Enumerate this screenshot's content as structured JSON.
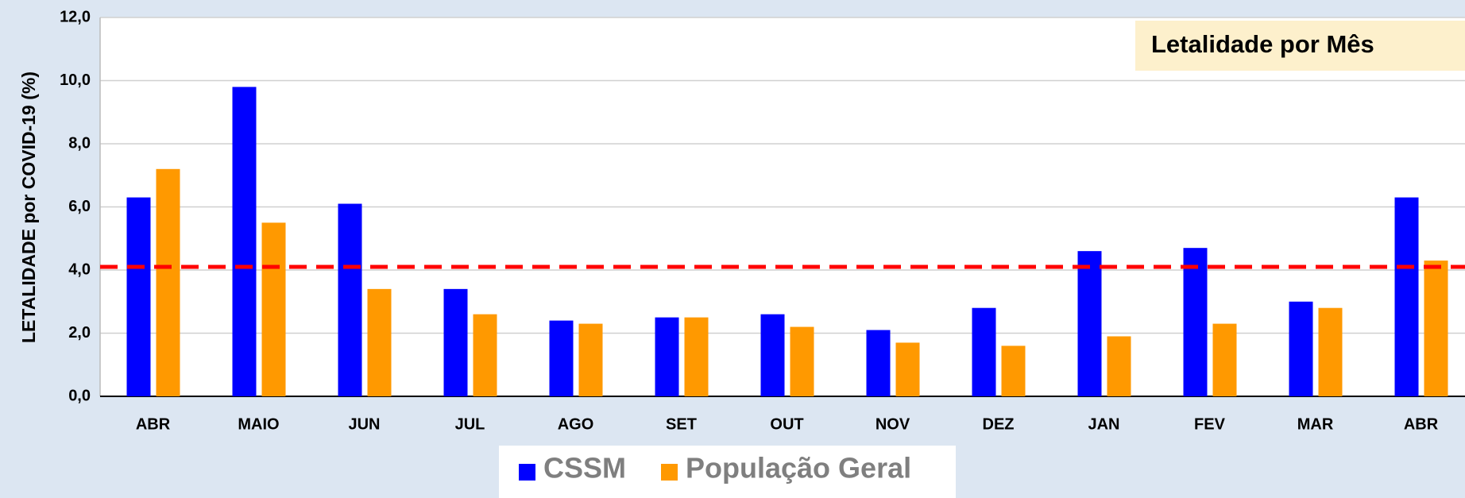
{
  "chart_data": {
    "type": "bar",
    "title": "Letalidade por Mês",
    "y_label": "LETALIDADE por COVID-19 (%)",
    "categories": [
      "ABR",
      "MAIO",
      "JUN",
      "JUL",
      "AGO",
      "SET",
      "OUT",
      "NOV",
      "DEZ",
      "JAN",
      "FEV",
      "MAR",
      "ABR"
    ],
    "series": [
      {
        "name": "CSSM",
        "color": "#0000ff",
        "values": [
          6.3,
          9.8,
          6.1,
          3.4,
          2.4,
          2.5,
          2.6,
          2.1,
          2.8,
          4.6,
          4.7,
          3.0,
          6.3
        ]
      },
      {
        "name": "População Geral",
        "color": "#ff9900",
        "values": [
          7.2,
          5.5,
          3.4,
          2.6,
          2.3,
          2.5,
          2.2,
          1.7,
          1.6,
          1.9,
          2.3,
          2.8,
          4.3
        ]
      }
    ],
    "reference_line": {
      "value": 4.1,
      "color": "#ff0000"
    },
    "ylim": [
      0,
      12
    ],
    "yticks": [
      {
        "value": 0,
        "label": "0,0"
      },
      {
        "value": 2,
        "label": "2,0"
      },
      {
        "value": 4,
        "label": "4,0"
      },
      {
        "value": 6,
        "label": "6,0"
      },
      {
        "value": 8,
        "label": "8,0"
      },
      {
        "value": 10,
        "label": "10,0"
      },
      {
        "value": 12,
        "label": "12,0"
      }
    ],
    "grid": true
  }
}
